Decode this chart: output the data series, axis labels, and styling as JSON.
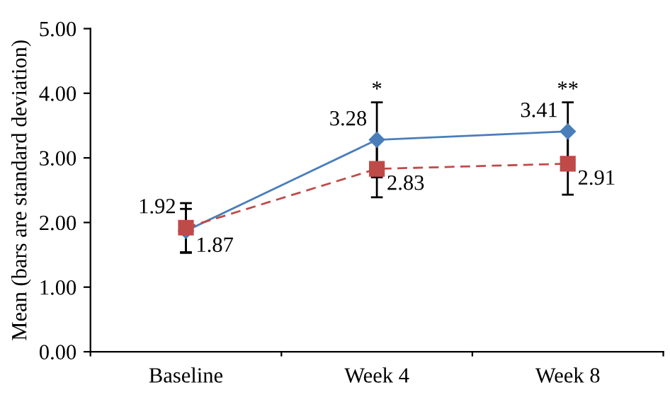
{
  "chart_data": {
    "type": "line",
    "ylabel": "Mean (bars are standard deviation)",
    "categories": [
      "Baseline",
      "Week 4",
      "Week 8"
    ],
    "series": [
      {
        "color": "#4a7ebb",
        "values": [
          1.87,
          3.28,
          3.41
        ],
        "errors": [
          0.34,
          0.58,
          0.45
        ],
        "marker": "diamond",
        "line_style": "solid",
        "value_labels": [
          "1.87",
          "3.28",
          "3.41"
        ]
      },
      {
        "color": "#be4b48",
        "values": [
          1.92,
          2.83,
          2.91
        ],
        "errors": [
          0.38,
          0.44,
          0.48
        ],
        "marker": "square",
        "line_style": "dashed",
        "value_labels": [
          "1.92",
          "2.83",
          "2.91"
        ]
      }
    ],
    "ylim": [
      0,
      5
    ],
    "yticks": [
      {
        "value": 0,
        "label": "0.00"
      },
      {
        "value": 1,
        "label": "1.00"
      },
      {
        "value": 2,
        "label": "2.00"
      },
      {
        "value": 3,
        "label": "3.00"
      },
      {
        "value": 4,
        "label": "4.00"
      },
      {
        "value": 5,
        "label": "5.00"
      }
    ],
    "grid": false,
    "legend": false,
    "annotations": [
      "*",
      "**"
    ]
  }
}
